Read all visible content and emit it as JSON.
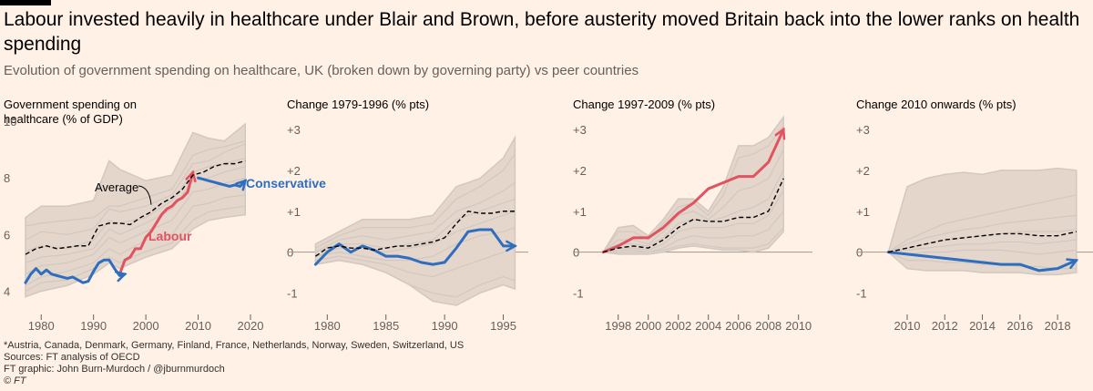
{
  "header": {
    "title": "Labour invested heavily in healthcare under Blair and Brown, before austerity moved Britain back into the lower ranks on health spending",
    "subtitle": "Evolution of government spending on healthcare, UK (broken down by governing party) vs peer countries"
  },
  "footer": {
    "note": "*Austria, Canada, Denmark, Germany, Finland, France, Netherlands, Norway, Sweden, Switzerland, US",
    "sources": "Sources: FT analysis of OECD",
    "credit": "FT graphic: John Burn-Murdoch / @jburnmurdoch",
    "copyright": "© FT"
  },
  "colors": {
    "background": "#fff1e5",
    "band": "#e5d6cc",
    "peer_lines": "#d1c8c0",
    "average": "#000000",
    "labour": "#e0535f",
    "conservative": "#2e6ebf",
    "axis_text": "#66605c"
  },
  "chart_data": [
    {
      "type": "line",
      "title": "Government spending on healthcare (% of GDP)",
      "title_lines": [
        "Government spending on",
        "healthcare (% of GDP)"
      ],
      "xlim": [
        1977,
        2020
      ],
      "ylim": [
        3.5,
        10
      ],
      "xticks": [
        1980,
        1990,
        2000,
        2010,
        2020
      ],
      "yticks": [
        4,
        6,
        8,
        10
      ],
      "series": [
        {
          "name": "Labour",
          "role": "labour",
          "x": [
            1995,
            1996,
            1997,
            1998,
            1999,
            2000,
            2001,
            2002,
            2003,
            2004,
            2005,
            2006,
            2007,
            2008,
            2009
          ],
          "y": [
            4.6,
            5.1,
            5.2,
            5.5,
            5.5,
            5.9,
            6.1,
            6.4,
            6.7,
            6.9,
            7.0,
            7.2,
            7.3,
            7.5,
            8.2
          ]
        },
        {
          "name": "Conservative",
          "role": "conservative",
          "x": [
            1977,
            1978,
            1979,
            1980,
            1981,
            1982,
            1983,
            1984,
            1985,
            1986,
            1987,
            1988,
            1989,
            1990,
            1991,
            1992,
            1993,
            1994,
            1995,
            1996,
            2010,
            2011,
            2012,
            2013,
            2014,
            2015,
            2016,
            2017,
            2018,
            2019
          ],
          "y": [
            4.3,
            4.6,
            4.8,
            4.6,
            4.75,
            4.6,
            4.55,
            4.5,
            4.45,
            4.5,
            4.4,
            4.3,
            4.35,
            4.7,
            5.0,
            5.1,
            5.1,
            4.8,
            4.55,
            4.6,
            8.0,
            7.95,
            7.9,
            7.85,
            7.8,
            7.75,
            7.7,
            7.75,
            7.7,
            7.9
          ]
        },
        {
          "name": "Average",
          "role": "average",
          "x": [
            1977,
            1979,
            1981,
            1983,
            1985,
            1987,
            1989,
            1991,
            1993,
            1995,
            1997,
            1999,
            2001,
            2003,
            2005,
            2007,
            2009,
            2011,
            2013,
            2015,
            2017,
            2019
          ],
          "y": [
            5.3,
            5.5,
            5.6,
            5.5,
            5.55,
            5.6,
            5.6,
            6.3,
            6.4,
            6.4,
            6.35,
            6.6,
            6.8,
            7.1,
            7.3,
            7.6,
            8.1,
            8.2,
            8.4,
            8.5,
            8.5,
            8.6
          ]
        }
      ],
      "band": {
        "x": [
          1977,
          1980,
          1985,
          1990,
          1993,
          1995,
          2000,
          2005,
          2009,
          2012,
          2015,
          2019
        ],
        "upper": [
          6.6,
          7.0,
          7.0,
          7.2,
          8.6,
          8.3,
          7.9,
          8.1,
          9.6,
          9.4,
          9.3,
          9.9
        ],
        "lower": [
          3.8,
          4.0,
          4.2,
          4.6,
          5.0,
          4.8,
          5.2,
          5.5,
          6.2,
          6.5,
          6.6,
          6.7
        ]
      },
      "peers": [
        [
          6.3,
          6.4,
          6.5,
          6.6,
          7.0,
          7.0,
          7.3,
          7.6,
          8.8,
          9.0,
          9.1,
          9.3
        ],
        [
          5.8,
          6.1,
          6.0,
          6.2,
          6.9,
          6.8,
          7.0,
          7.4,
          8.5,
          8.6,
          8.9,
          9.2
        ],
        [
          5.4,
          5.6,
          5.5,
          5.8,
          6.5,
          6.4,
          6.6,
          7.2,
          8.2,
          8.4,
          8.5,
          8.7
        ],
        [
          5.0,
          5.2,
          5.3,
          5.5,
          6.2,
          6.0,
          6.4,
          6.9,
          7.9,
          8.0,
          8.2,
          8.4
        ],
        [
          4.6,
          4.9,
          5.0,
          5.3,
          5.9,
          5.7,
          6.1,
          6.5,
          7.5,
          7.6,
          7.8,
          8.0
        ],
        [
          4.2,
          4.5,
          4.7,
          5.0,
          5.5,
          5.3,
          5.8,
          6.0,
          7.0,
          7.1,
          7.3,
          7.4
        ],
        [
          4.0,
          4.3,
          4.4,
          4.8,
          5.2,
          5.0,
          5.4,
          5.7,
          6.5,
          6.8,
          6.9,
          7.0
        ]
      ],
      "annotations": {
        "average": "Average",
        "labour": "Labour",
        "conservative": "Conservative"
      }
    },
    {
      "type": "line",
      "title": "Change 1979-1996 (% pts)",
      "xlim": [
        1978.5,
        1996.2
      ],
      "ylim": [
        -1.3,
        3.2
      ],
      "xticks": [
        1980,
        1985,
        1990,
        1995
      ],
      "yticks": [
        -1,
        0,
        1,
        2,
        3
      ],
      "ytick_labels": [
        "-1",
        "0",
        "+1",
        "+2",
        "+3"
      ],
      "zero_line": true,
      "series": [
        {
          "name": "Conservative",
          "role": "conservative",
          "x": [
            1979,
            1980,
            1981,
            1982,
            1983,
            1984,
            1985,
            1986,
            1987,
            1988,
            1989,
            1990,
            1991,
            1992,
            1993,
            1994,
            1995,
            1996
          ],
          "y": [
            -0.3,
            0.0,
            0.2,
            0.0,
            0.15,
            0.05,
            -0.1,
            -0.1,
            -0.15,
            -0.25,
            -0.3,
            -0.25,
            0.1,
            0.5,
            0.55,
            0.55,
            0.15,
            0.15
          ]
        },
        {
          "name": "Average",
          "role": "average",
          "x": [
            1979,
            1980,
            1981,
            1982,
            1983,
            1984,
            1985,
            1986,
            1987,
            1988,
            1989,
            1990,
            1991,
            1992,
            1993,
            1994,
            1995,
            1996
          ],
          "y": [
            -0.1,
            0.1,
            0.15,
            0.1,
            0.1,
            0.05,
            0.1,
            0.15,
            0.15,
            0.2,
            0.25,
            0.35,
            0.7,
            1.0,
            0.95,
            0.95,
            1.0,
            1.0
          ]
        }
      ],
      "band": {
        "x": [
          1979,
          1981,
          1983,
          1985,
          1987,
          1989,
          1991,
          1993,
          1995,
          1996
        ],
        "upper": [
          0.2,
          0.5,
          0.8,
          0.8,
          0.8,
          0.9,
          1.6,
          1.8,
          2.3,
          2.8
        ],
        "lower": [
          -0.3,
          -0.2,
          -0.3,
          -0.5,
          -0.8,
          -1.2,
          -1.3,
          -1.0,
          -0.8,
          -0.9
        ]
      },
      "peers": [
        [
          0.1,
          0.4,
          0.6,
          0.6,
          0.6,
          0.7,
          1.3,
          1.6,
          2.0,
          2.4
        ],
        [
          0.0,
          0.3,
          0.4,
          0.3,
          0.4,
          0.5,
          1.0,
          1.2,
          1.5,
          1.7
        ],
        [
          0.0,
          0.2,
          0.2,
          0.1,
          0.2,
          0.3,
          0.8,
          1.0,
          1.2,
          1.3
        ],
        [
          -0.1,
          0.1,
          0.1,
          0.0,
          0.1,
          0.2,
          0.5,
          0.7,
          0.9,
          1.0
        ],
        [
          -0.1,
          0.0,
          -0.1,
          -0.2,
          -0.2,
          -0.1,
          0.2,
          0.4,
          0.5,
          0.6
        ],
        [
          -0.2,
          -0.1,
          -0.2,
          -0.3,
          -0.5,
          -0.6,
          -0.4,
          -0.2,
          0.0,
          0.1
        ],
        [
          -0.3,
          -0.2,
          -0.3,
          -0.5,
          -0.8,
          -1.0,
          -1.1,
          -0.8,
          -0.6,
          -0.7
        ]
      ]
    },
    {
      "type": "line",
      "title": "Change 1997-2009 (% pts)",
      "xlim": [
        1996.5,
        2010.2
      ],
      "ylim": [
        -1.3,
        3.2
      ],
      "xticks": [
        1998,
        2000,
        2002,
        2004,
        2006,
        2008,
        2010
      ],
      "yticks": [
        -1,
        0,
        1,
        2,
        3
      ],
      "ytick_labels": [
        "-1",
        "0",
        "+1",
        "+2",
        "+3"
      ],
      "zero_line": true,
      "series": [
        {
          "name": "Labour",
          "role": "labour",
          "x": [
            1997,
            1998,
            1999,
            2000,
            2001,
            2002,
            2003,
            2004,
            2005,
            2006,
            2007,
            2008,
            2009
          ],
          "y": [
            0.0,
            0.15,
            0.35,
            0.35,
            0.6,
            0.95,
            1.2,
            1.55,
            1.7,
            1.85,
            1.85,
            2.2,
            3.0
          ]
        },
        {
          "name": "Average",
          "role": "average",
          "x": [
            1997,
            1998,
            1999,
            2000,
            2001,
            2002,
            2003,
            2004,
            2005,
            2006,
            2007,
            2008,
            2009
          ],
          "y": [
            0.0,
            0.1,
            0.15,
            0.1,
            0.3,
            0.6,
            0.8,
            0.75,
            0.75,
            0.85,
            0.85,
            1.0,
            1.8
          ]
        }
      ],
      "band": {
        "x": [
          1997,
          1998,
          1999,
          2000,
          2001,
          2002,
          2003,
          2004,
          2005,
          2006,
          2007,
          2008,
          2009
        ],
        "upper": [
          0.0,
          0.6,
          0.65,
          0.4,
          0.8,
          1.3,
          1.3,
          1.0,
          1.6,
          2.6,
          2.6,
          2.8,
          3.3
        ],
        "lower": [
          0.0,
          -0.05,
          -0.05,
          -0.05,
          0.0,
          0.1,
          0.15,
          0.1,
          0.05,
          0.05,
          0.0,
          0.1,
          0.5
        ]
      },
      "peers": [
        [
          0.0,
          0.5,
          0.5,
          0.3,
          0.7,
          1.1,
          1.2,
          0.9,
          1.4,
          2.3,
          2.4,
          2.6,
          3.1
        ],
        [
          0.0,
          0.3,
          0.3,
          0.2,
          0.5,
          0.9,
          1.0,
          0.8,
          1.1,
          1.5,
          1.6,
          1.8,
          2.5
        ],
        [
          0.0,
          0.2,
          0.2,
          0.15,
          0.35,
          0.7,
          0.8,
          0.75,
          0.85,
          1.0,
          1.1,
          1.3,
          2.0
        ],
        [
          0.0,
          0.1,
          0.1,
          0.05,
          0.2,
          0.5,
          0.6,
          0.6,
          0.6,
          0.7,
          0.7,
          0.9,
          1.5
        ],
        [
          0.0,
          0.05,
          0.05,
          0.0,
          0.1,
          0.3,
          0.4,
          0.35,
          0.35,
          0.4,
          0.4,
          0.55,
          1.0
        ],
        [
          0.0,
          0.0,
          0.0,
          0.0,
          0.05,
          0.15,
          0.2,
          0.15,
          0.1,
          0.1,
          0.1,
          0.2,
          0.6
        ]
      ]
    },
    {
      "type": "line",
      "title": "Change 2010 onwards (% pts)",
      "xlim": [
        2008.5,
        2019.4
      ],
      "ylim": [
        -1.3,
        3.2
      ],
      "xticks": [
        2010,
        2012,
        2014,
        2016,
        2018
      ],
      "yticks": [
        -1,
        0,
        1,
        2,
        3
      ],
      "ytick_labels": [
        "-1",
        "0",
        "+1",
        "+2",
        "+3"
      ],
      "zero_line": true,
      "series": [
        {
          "name": "Conservative",
          "role": "conservative",
          "x": [
            2009,
            2010,
            2011,
            2012,
            2013,
            2014,
            2015,
            2016,
            2017,
            2018,
            2019
          ],
          "y": [
            0.0,
            -0.05,
            -0.1,
            -0.15,
            -0.2,
            -0.25,
            -0.3,
            -0.3,
            -0.45,
            -0.4,
            -0.2
          ]
        },
        {
          "name": "Average",
          "role": "average",
          "x": [
            2009,
            2010,
            2011,
            2012,
            2013,
            2014,
            2015,
            2016,
            2017,
            2018,
            2019
          ],
          "y": [
            0.0,
            0.1,
            0.2,
            0.3,
            0.35,
            0.4,
            0.45,
            0.45,
            0.4,
            0.4,
            0.5
          ]
        }
      ],
      "band": {
        "x": [
          2009,
          2010,
          2011,
          2012,
          2013,
          2014,
          2015,
          2016,
          2017,
          2018,
          2019
        ],
        "upper": [
          0.0,
          1.6,
          1.8,
          1.9,
          1.95,
          1.9,
          2.0,
          2.0,
          2.0,
          2.05,
          2.0
        ],
        "lower": [
          0.0,
          -0.4,
          -0.45,
          -0.45,
          -0.45,
          -0.5,
          -0.5,
          -0.5,
          -0.55,
          -0.55,
          -0.5
        ]
      },
      "peers": [
        [
          0.0,
          0.3,
          0.5,
          0.7,
          0.8,
          0.9,
          1.0,
          1.1,
          1.2,
          1.3,
          1.4
        ],
        [
          0.0,
          0.2,
          0.35,
          0.45,
          0.55,
          0.6,
          0.7,
          0.75,
          0.8,
          0.85,
          0.9
        ],
        [
          0.0,
          0.1,
          0.2,
          0.3,
          0.35,
          0.4,
          0.45,
          0.5,
          0.5,
          0.5,
          0.55
        ],
        [
          0.0,
          0.05,
          0.1,
          0.15,
          0.2,
          0.2,
          0.25,
          0.25,
          0.2,
          0.25,
          0.3
        ],
        [
          0.0,
          -0.05,
          0.0,
          0.0,
          0.05,
          0.05,
          0.05,
          0.0,
          -0.05,
          0.0,
          0.05
        ],
        [
          0.0,
          -0.2,
          -0.2,
          -0.25,
          -0.25,
          -0.3,
          -0.3,
          -0.35,
          -0.35,
          -0.4,
          -0.4
        ]
      ]
    }
  ]
}
